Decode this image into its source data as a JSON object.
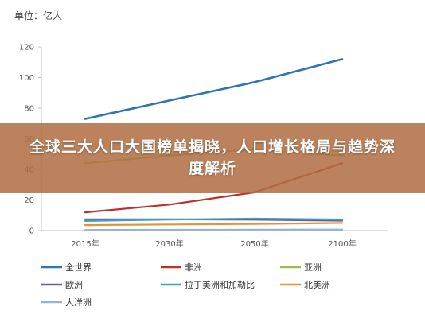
{
  "unit_label": "单位：亿人",
  "banner_title": "全球三大人口大国榜单揭晓，人口增长格局与趋势深度解析",
  "chart_data": {
    "type": "line",
    "x": [
      "2015年",
      "2030年",
      "2050年",
      "2100年"
    ],
    "ylim": [
      0,
      120
    ],
    "yticks": [
      0,
      20,
      40,
      60,
      80,
      100,
      120
    ],
    "grid": false,
    "legend_position": "bottom",
    "series": [
      {
        "name": "全世界",
        "color": "#2e75b6",
        "values": [
          73,
          85,
          97,
          112
        ]
      },
      {
        "name": "非洲",
        "color": "#c0302b",
        "values": [
          11.9,
          17,
          25,
          44
        ]
      },
      {
        "name": "亚洲",
        "color": "#9bbb59",
        "values": [
          44,
          49,
          53,
          49
        ]
      },
      {
        "name": "欧洲",
        "color": "#6e5b9b",
        "values": [
          7.4,
          7.3,
          7.1,
          6.5
        ]
      },
      {
        "name": "拉丁美洲和加勒比",
        "color": "#3fa0b8",
        "values": [
          6.3,
          7.2,
          7.8,
          7.2
        ]
      },
      {
        "name": "北美洲",
        "color": "#e69138",
        "values": [
          3.6,
          4,
          4.3,
          5
        ]
      },
      {
        "name": "大洋洲",
        "color": "#95b3d7",
        "values": [
          0.4,
          0.5,
          0.6,
          0.7
        ]
      }
    ]
  }
}
